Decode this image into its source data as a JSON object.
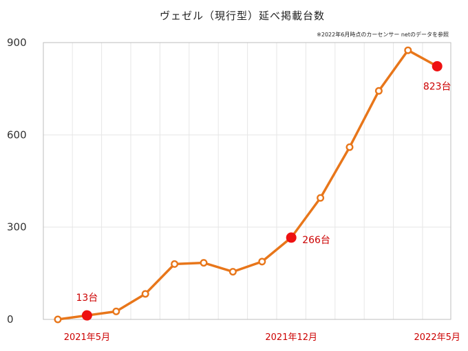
{
  "chart_data": {
    "type": "line",
    "title": "ヴェゼル（現行型）延べ掲載台数",
    "note": "※2022年6月時点のカーセンサー netのデータを参照",
    "xlabel": "",
    "ylabel": "",
    "ylim": [
      0,
      900
    ],
    "yticks": [
      0,
      300,
      600,
      900
    ],
    "grid": true,
    "series": [
      {
        "values": [
          0,
          13,
          26,
          83,
          180,
          184,
          155,
          188,
          266,
          395,
          560,
          743,
          875,
          823
        ],
        "color": "#e8761a",
        "highlight_color": "#ee1111",
        "highlight_indices": [
          1,
          8,
          13
        ]
      }
    ],
    "x_labels": [
      {
        "index": 1,
        "text": "2021年5月"
      },
      {
        "index": 8,
        "text": "2021年12月"
      },
      {
        "index": 13,
        "text": "2022年5月"
      }
    ],
    "data_labels": [
      {
        "index": 1,
        "text": "13台",
        "position": "above"
      },
      {
        "index": 8,
        "text": "266台",
        "position": "right"
      },
      {
        "index": 13,
        "text": "823台",
        "position": "below"
      }
    ]
  }
}
